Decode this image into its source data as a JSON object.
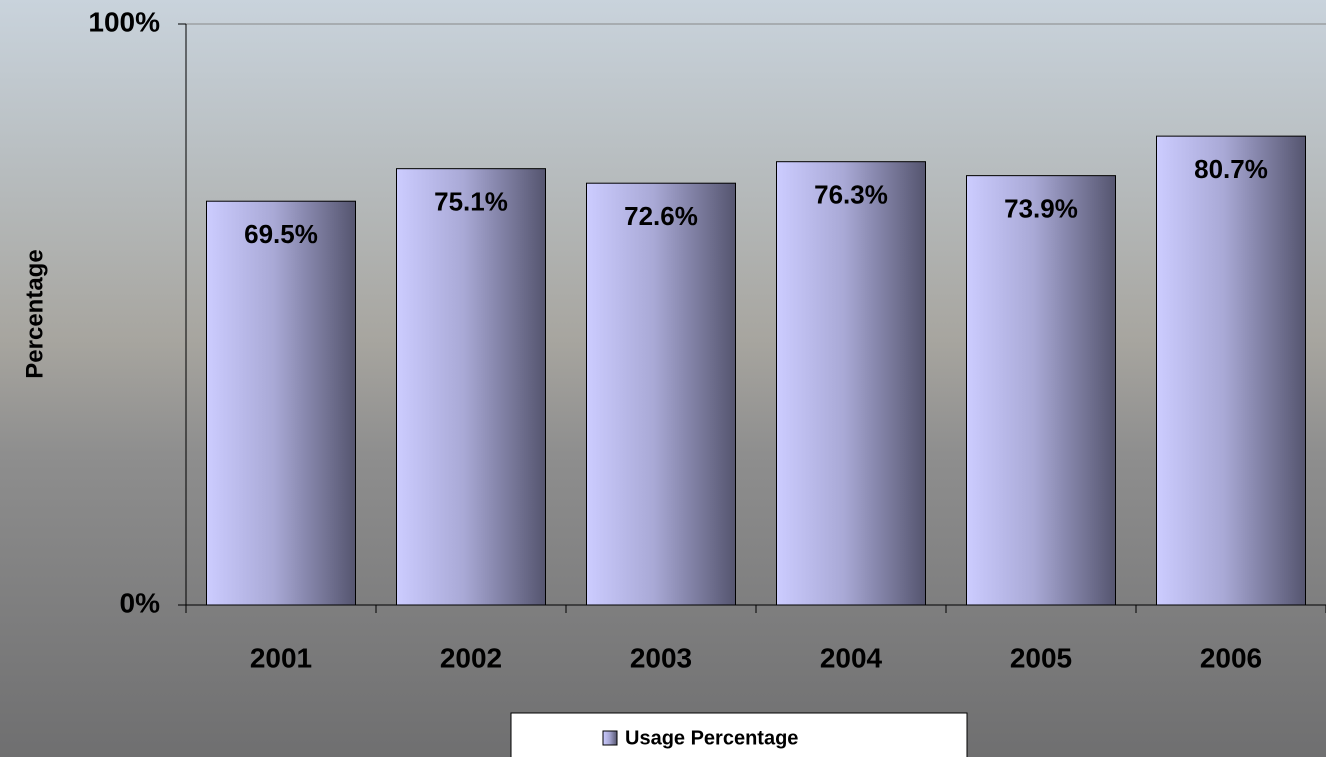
{
  "chart_data": {
    "type": "bar",
    "y_label": "Percentage",
    "categories": [
      "2001",
      "2002",
      "2003",
      "2004",
      "2005",
      "2006"
    ],
    "series": [
      {
        "name": "Usage Percentage",
        "color": "#ccccff",
        "values": [
          69.5,
          75.1,
          72.6,
          76.3,
          73.9,
          80.7
        ],
        "value_labels": [
          "69.5%",
          "75.1%",
          "72.6%",
          "76.3%",
          "73.9%",
          "80.7%"
        ]
      }
    ],
    "ylim": [
      0,
      100
    ],
    "yticks": [
      {
        "value": 0,
        "label": "0%"
      },
      {
        "value": 100,
        "label": "100%"
      }
    ],
    "grid": true,
    "legend": "bottom"
  }
}
